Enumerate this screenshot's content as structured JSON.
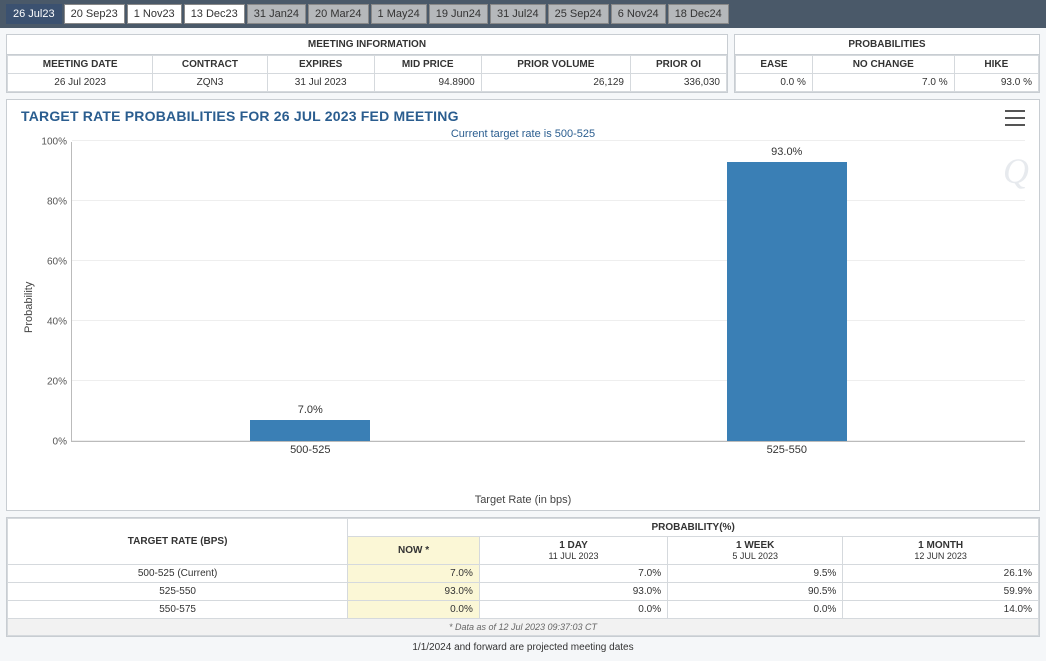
{
  "tabs": [
    {
      "label": "26 Jul23",
      "style": "active"
    },
    {
      "label": "20 Sep23",
      "style": "light"
    },
    {
      "label": "1 Nov23",
      "style": "light"
    },
    {
      "label": "13 Dec23",
      "style": "light"
    },
    {
      "label": "31 Jan24",
      "style": "gray"
    },
    {
      "label": "20 Mar24",
      "style": "gray"
    },
    {
      "label": "1 May24",
      "style": "gray"
    },
    {
      "label": "19 Jun24",
      "style": "gray"
    },
    {
      "label": "31 Jul24",
      "style": "gray"
    },
    {
      "label": "25 Sep24",
      "style": "gray"
    },
    {
      "label": "6 Nov24",
      "style": "gray"
    },
    {
      "label": "18 Dec24",
      "style": "gray"
    }
  ],
  "meeting_info": {
    "title": "MEETING INFORMATION",
    "headers": [
      "MEETING DATE",
      "CONTRACT",
      "EXPIRES",
      "MID PRICE",
      "PRIOR VOLUME",
      "PRIOR OI"
    ],
    "row": {
      "meeting_date": "26 Jul 2023",
      "contract": "ZQN3",
      "expires": "31 Jul 2023",
      "mid_price": "94.8900",
      "prior_volume": "26,129",
      "prior_oi": "336,030"
    }
  },
  "probabilities": {
    "title": "PROBABILITIES",
    "headers": [
      "EASE",
      "NO CHANGE",
      "HIKE"
    ],
    "row": {
      "ease": "0.0 %",
      "no_change": "7.0 %",
      "hike": "93.0 %"
    }
  },
  "chart": {
    "title": "TARGET RATE PROBABILITIES FOR 26 JUL 2023 FED MEETING",
    "subtitle": "Current target rate is 500-525",
    "type": "bar",
    "y_label": "Probability",
    "x_label": "Target Rate (in bps)",
    "ylim": [
      0,
      100
    ],
    "ytick_step": 20,
    "y_ticks": [
      "0%",
      "20%",
      "40%",
      "60%",
      "80%",
      "100%"
    ],
    "categories": [
      "500-525",
      "525-550"
    ],
    "values": [
      7.0,
      93.0
    ],
    "value_labels": [
      "7.0%",
      "93.0%"
    ],
    "bar_color": "#3a7fb5",
    "grid_color": "#eeeeee",
    "background_color": "#ffffff",
    "watermark": "Q"
  },
  "prob_table": {
    "left_header": "TARGET RATE (BPS)",
    "right_header": "PROBABILITY(%)",
    "cols": [
      {
        "top": "NOW *",
        "sub": ""
      },
      {
        "top": "1 DAY",
        "sub": "11 JUL 2023"
      },
      {
        "top": "1 WEEK",
        "sub": "5 JUL 2023"
      },
      {
        "top": "1 MONTH",
        "sub": "12 JUN 2023"
      }
    ],
    "rows": [
      {
        "label": "500-525 (Current)",
        "cells": [
          "7.0%",
          "7.0%",
          "9.5%",
          "26.1%"
        ]
      },
      {
        "label": "525-550",
        "cells": [
          "93.0%",
          "93.0%",
          "90.5%",
          "59.9%"
        ]
      },
      {
        "label": "550-575",
        "cells": [
          "0.0%",
          "0.0%",
          "0.0%",
          "14.0%"
        ]
      }
    ],
    "footer": "* Data as of 12 Jul 2023 09:37:03 CT"
  },
  "bottom_note": "1/1/2024 and forward are projected meeting dates"
}
